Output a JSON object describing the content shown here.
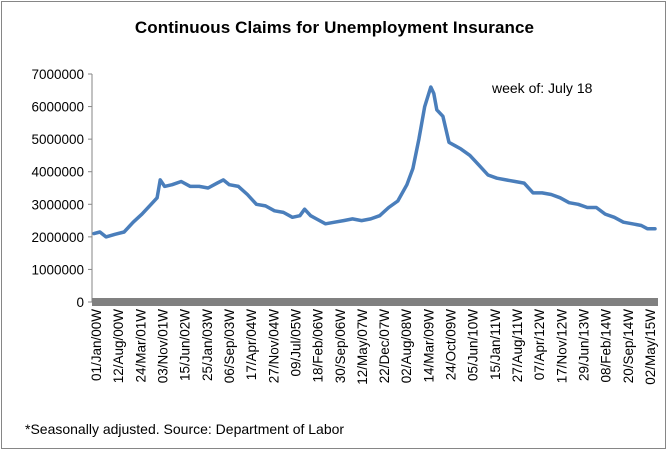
{
  "chart_data": {
    "type": "line",
    "title": "Continuous Claims for Unemployment Insurance",
    "annotation": "week of: July 18",
    "footnote": "*Seasonally adjusted.  Source: Department of Labor",
    "ylim": [
      0,
      7000000
    ],
    "y_ticks": [
      "0",
      "1000000",
      "2000000",
      "3000000",
      "4000000",
      "5000000",
      "6000000",
      "7000000"
    ],
    "x_tick_labels": [
      "01/Jan/00W",
      "12/Aug/00W",
      "24/Mar/01W",
      "03/Nov/01W",
      "15/Jun/02W",
      "25/Jan/03W",
      "06/Sep/03W",
      "17/Apr/04W",
      "27/Nov/04W",
      "09/Jul/05W",
      "18/Feb/06W",
      "30/Sep/06W",
      "12/May/07W",
      "22/Dec/07W",
      "02/Aug/08W",
      "14/Mar/09W",
      "24/Oct/09W",
      "05/Jun/10W",
      "15/Jan/11W",
      "27/Aug/11W",
      "07/Apr/12W",
      "17/Nov/12W",
      "29/Jun/13W",
      "08/Feb/14W",
      "20/Sep/14W",
      "02/May/15W"
    ],
    "grid": false,
    "line_color": "#4a7ebb",
    "series": [
      {
        "x": [
          "2000-01-01",
          "2000-03-01",
          "2000-05-01",
          "2000-08-01",
          "2000-11-01",
          "2001-02-01",
          "2001-05-01",
          "2001-08-01",
          "2001-10-01",
          "2001-11-01",
          "2001-12-15",
          "2002-03-01",
          "2002-06-01",
          "2002-09-01",
          "2002-12-01",
          "2003-03-01",
          "2003-06-01",
          "2003-08-01",
          "2003-10-01",
          "2004-01-01",
          "2004-04-01",
          "2004-07-01",
          "2004-10-01",
          "2005-01-01",
          "2005-04-01",
          "2005-07-01",
          "2005-09-15",
          "2005-11-01",
          "2006-01-01",
          "2006-03-01",
          "2006-06-01",
          "2006-09-01",
          "2006-12-01",
          "2007-03-01",
          "2007-06-01",
          "2007-09-01",
          "2007-12-01",
          "2008-03-01",
          "2008-06-01",
          "2008-09-01",
          "2008-11-01",
          "2009-01-01",
          "2009-03-01",
          "2009-05-01",
          "2009-06-01",
          "2009-07-01",
          "2009-09-01",
          "2009-11-01",
          "2010-01-01",
          "2010-03-01",
          "2010-06-01",
          "2010-09-01",
          "2010-12-01",
          "2011-03-01",
          "2011-06-01",
          "2011-09-01",
          "2011-12-01",
          "2012-03-01",
          "2012-06-01",
          "2012-09-01",
          "2012-12-01",
          "2013-03-01",
          "2013-06-01",
          "2013-09-01",
          "2013-12-01",
          "2014-03-01",
          "2014-06-01",
          "2014-09-01",
          "2014-12-01",
          "2015-03-01",
          "2015-05-01",
          "2015-07-18"
        ],
        "y": [
          2100000,
          2150000,
          2000000,
          2080000,
          2150000,
          2450000,
          2700000,
          3000000,
          3200000,
          3750000,
          3550000,
          3600000,
          3700000,
          3550000,
          3550000,
          3500000,
          3650000,
          3750000,
          3600000,
          3550000,
          3300000,
          3000000,
          2950000,
          2800000,
          2750000,
          2600000,
          2650000,
          2850000,
          2650000,
          2550000,
          2400000,
          2450000,
          2500000,
          2550000,
          2500000,
          2550000,
          2650000,
          2900000,
          3100000,
          3600000,
          4100000,
          5000000,
          6000000,
          6600000,
          6400000,
          5900000,
          5700000,
          4900000,
          4800000,
          4700000,
          4500000,
          4200000,
          3900000,
          3800000,
          3750000,
          3700000,
          3650000,
          3350000,
          3350000,
          3300000,
          3200000,
          3050000,
          3000000,
          2900000,
          2900000,
          2700000,
          2600000,
          2450000,
          2400000,
          2350000,
          2250000,
          2250000
        ]
      }
    ]
  }
}
